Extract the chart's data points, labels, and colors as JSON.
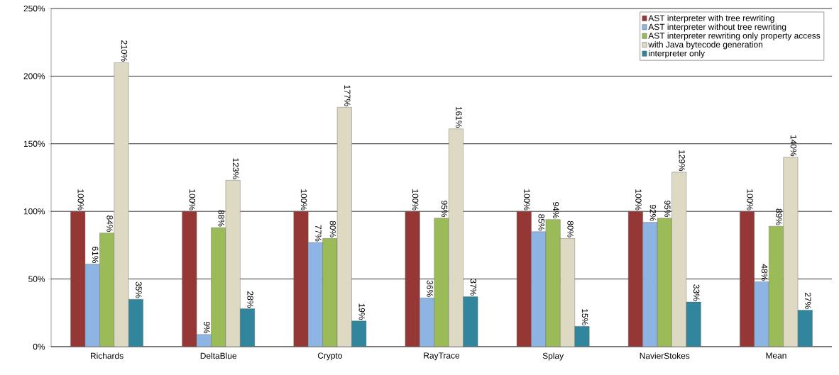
{
  "chart_data": {
    "type": "bar",
    "categories": [
      "Richards",
      "DeltaBlue",
      "Crypto",
      "RayTrace",
      "Splay",
      "NavierStokes",
      "Mean"
    ],
    "series": [
      {
        "name": "AST interpreter with tree rewriting",
        "color": "#953735",
        "values": [
          100,
          100,
          100,
          100,
          100,
          100,
          100
        ],
        "value_labels": [
          "100%",
          "100%",
          "100%",
          "100%",
          "100%",
          "100%",
          "100%"
        ]
      },
      {
        "name": "AST interpreter without tree rewriting",
        "color": "#8eb4e3",
        "values": [
          61,
          9,
          77,
          36,
          85,
          92,
          48
        ],
        "value_labels": [
          "61%",
          "9%",
          "77%",
          "36%",
          "85%",
          "92%",
          "48%"
        ]
      },
      {
        "name": "AST interpreter rewriting only property access",
        "color": "#9bbb59",
        "values": [
          84,
          88,
          80,
          95,
          94,
          95,
          89
        ],
        "value_labels": [
          "84%",
          "88%",
          "80%",
          "95%",
          "94%",
          "95%",
          "89%"
        ]
      },
      {
        "name": "with Java bytecode generation",
        "color": "#ddd9c3",
        "values": [
          210,
          123,
          177,
          161,
          80,
          129,
          140
        ],
        "value_labels": [
          "210%",
          "123%",
          "177%",
          "161%",
          "80%",
          "129%",
          "140%"
        ]
      },
      {
        "name": "interpreter only",
        "color": "#31859c",
        "values": [
          35,
          28,
          19,
          37,
          15,
          33,
          27
        ],
        "value_labels": [
          "35%",
          "28%",
          "19%",
          "37%",
          "15%",
          "33%",
          "27%"
        ]
      }
    ],
    "ylim": [
      0,
      250
    ],
    "yticks": [
      {
        "value": 0,
        "label": "0%"
      },
      {
        "value": 50,
        "label": "50%"
      },
      {
        "value": 100,
        "label": "100%"
      },
      {
        "value": 150,
        "label": "150%"
      },
      {
        "value": 200,
        "label": "200%"
      },
      {
        "value": 250,
        "label": "250%"
      }
    ],
    "grid": "y",
    "legend": "top right"
  }
}
